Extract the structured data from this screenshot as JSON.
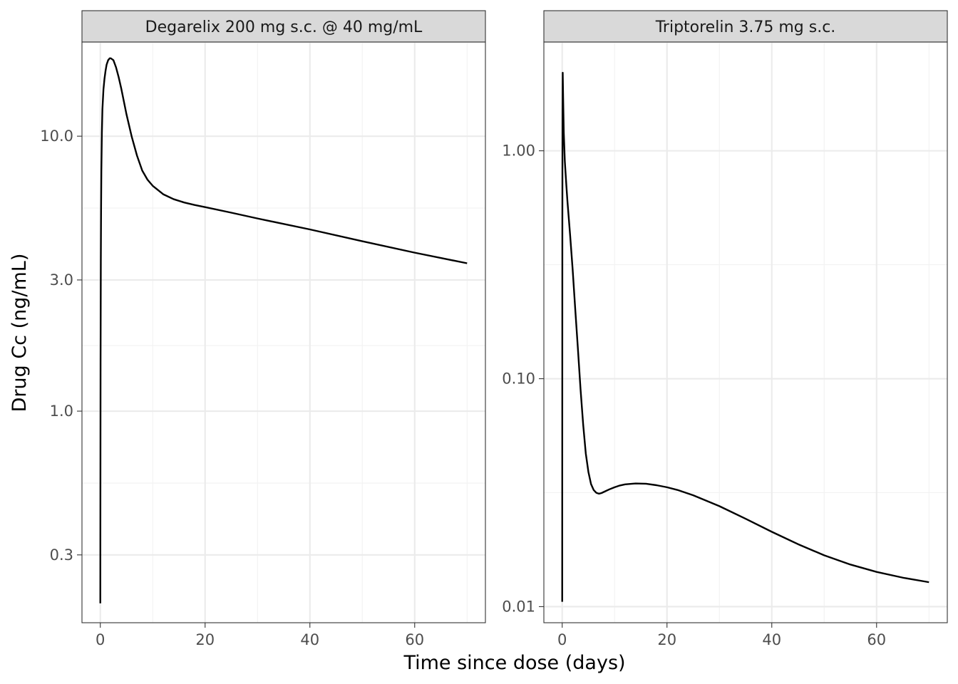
{
  "chart_data": {
    "type": "line",
    "xlabel": "Time since dose (days)",
    "ylabel": "Drug Cc (ng/mL)",
    "y_scale": "log10",
    "grid": true,
    "theme": "bw",
    "line_color": "#000000",
    "x_ticks": [
      0,
      20,
      40,
      60
    ],
    "panels": [
      {
        "title": "Degarelix 200 mg s.c. @ 40 mg/mL",
        "xlim": [
          -3.5,
          73.5
        ],
        "ylim": [
          0.17,
          22
        ],
        "y_ticks": [
          0.3,
          1.0,
          3.0,
          10.0
        ],
        "y_tick_labels": [
          "0.3",
          "1.0",
          "3.0",
          "10.0"
        ],
        "y_minor": [
          0.5473,
          1.732,
          5.477
        ],
        "series": [
          {
            "x": [
              0,
              0.02,
              0.05,
              0.1,
              0.15,
              0.2,
              0.3,
              0.4,
              0.6,
              0.8,
              1.0,
              1.2,
              1.5,
              1.8,
              2.0,
              2.5,
              3.0,
              3.5,
              4.0,
              5.0,
              6.0,
              7.0,
              8.0,
              9.0,
              10.0,
              12.0,
              14.0,
              16.0,
              18.0,
              20.0,
              25.0,
              30.0,
              40.0,
              50.0,
              60.0,
              70.0
            ],
            "y": [
              0.2,
              0.5,
              1.5,
              3.5,
              5.5,
              7.5,
              10.3,
              12.5,
              14.8,
              16.2,
              17.3,
              18.2,
              18.9,
              19.2,
              19.2,
              18.9,
              17.8,
              16.4,
              14.9,
              12.0,
              9.95,
              8.5,
              7.5,
              6.95,
              6.6,
              6.15,
              5.9,
              5.74,
              5.62,
              5.52,
              5.27,
              5.02,
              4.58,
              4.15,
              3.77,
              3.45
            ]
          }
        ]
      },
      {
        "title": "Triptorelin 3.75 mg s.c.",
        "xlim": [
          -3.5,
          73.5
        ],
        "ylim": [
          0.0085,
          3.0
        ],
        "y_ticks": [
          0.01,
          0.1,
          1.0
        ],
        "y_tick_labels": [
          "0.01",
          "0.10",
          "1.00"
        ],
        "y_minor": [
          0.03162,
          0.3162,
          3.162
        ],
        "series": [
          {
            "x": [
              0,
              0.03,
              0.06,
              0.1,
              0.2,
              0.3,
              0.5,
              0.8,
              1.0,
              1.5,
              2.0,
              2.5,
              3.0,
              3.5,
              4.0,
              4.5,
              5.0,
              5.5,
              6.0,
              6.5,
              7.0,
              7.5,
              8.0,
              9.0,
              10.0,
              11.0,
              12.0,
              14.0,
              16.0,
              18.0,
              20.0,
              22.0,
              25.0,
              30.0,
              35.0,
              40.0,
              45.0,
              50.0,
              55.0,
              60.0,
              65.0,
              70.0
            ],
            "y": [
              0.0105,
              0.5,
              1.5,
              2.2,
              1.6,
              1.2,
              0.9,
              0.7,
              0.6,
              0.43,
              0.3,
              0.2,
              0.135,
              0.09,
              0.063,
              0.047,
              0.039,
              0.0345,
              0.0325,
              0.0316,
              0.0313,
              0.0315,
              0.0319,
              0.0327,
              0.0334,
              0.034,
              0.0344,
              0.0347,
              0.0346,
              0.0341,
              0.0334,
              0.0325,
              0.0308,
              0.0276,
              0.0243,
              0.0213,
              0.0188,
              0.0168,
              0.0153,
              0.0142,
              0.0134,
              0.0128
            ]
          }
        ]
      }
    ]
  }
}
